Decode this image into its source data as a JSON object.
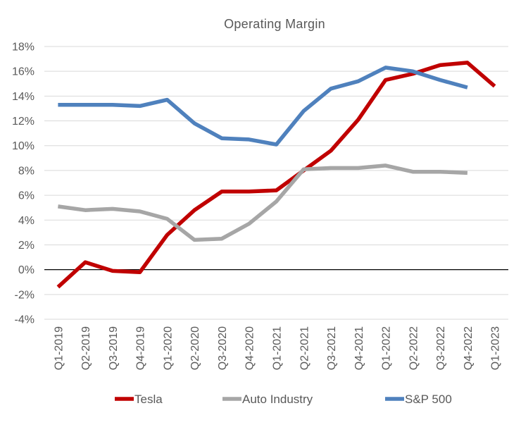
{
  "chart_data": {
    "type": "line",
    "title": "Operating Margin",
    "xlabel": "",
    "ylabel": "",
    "categories": [
      "Q1-2019",
      "Q2-2019",
      "Q3-2019",
      "Q4-2019",
      "Q1-2020",
      "Q2-2020",
      "Q3-2020",
      "Q4-2020",
      "Q1-2021",
      "Q2-2021",
      "Q3-2021",
      "Q4-2021",
      "Q1-2022",
      "Q2-2022",
      "Q3-2022",
      "Q4-2022",
      "Q1-2023"
    ],
    "ylim": [
      -4,
      18
    ],
    "yticks": [
      -4,
      -2,
      0,
      2,
      4,
      6,
      8,
      10,
      12,
      14,
      16,
      18
    ],
    "ytick_labels": [
      "-4%",
      "-2%",
      "0%",
      "2%",
      "4%",
      "6%",
      "8%",
      "10%",
      "12%",
      "14%",
      "16%",
      "18%"
    ],
    "grid": true,
    "legend_position": "bottom",
    "series": [
      {
        "name": "Tesla",
        "color": "#c00000",
        "values": [
          -1.4,
          0.6,
          -0.1,
          -0.2,
          2.8,
          4.8,
          6.3,
          6.3,
          6.4,
          8.0,
          9.6,
          12.1,
          15.3,
          15.8,
          16.5,
          16.7,
          14.8
        ]
      },
      {
        "name": "Auto Industry",
        "color": "#a6a6a6",
        "values": [
          5.1,
          4.8,
          4.9,
          4.7,
          4.1,
          2.4,
          2.5,
          3.7,
          5.5,
          8.1,
          8.2,
          8.2,
          8.4,
          7.9,
          7.9,
          7.8,
          null
        ]
      },
      {
        "name": "S&P 500",
        "color": "#4f81bd",
        "values": [
          13.3,
          13.3,
          13.3,
          13.2,
          13.7,
          11.8,
          10.6,
          10.5,
          10.1,
          12.8,
          14.6,
          15.2,
          16.3,
          16.0,
          15.3,
          14.7,
          null
        ]
      }
    ]
  }
}
